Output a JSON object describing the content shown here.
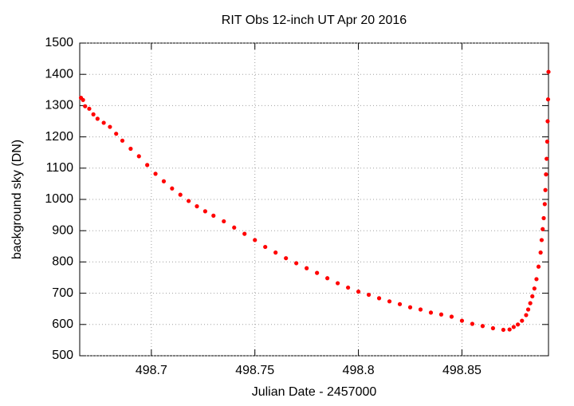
{
  "chart_data": {
    "type": "scatter",
    "title": "RIT Obs 12-inch UT Apr 20 2016",
    "x_label": "Julian Date - 2457000",
    "y_label": "background sky (DN)",
    "xlim": [
      498.6654,
      498.8918
    ],
    "ylim": [
      500,
      1500
    ],
    "xticks": [
      498.7,
      498.75,
      498.8,
      498.85
    ],
    "yticks": [
      500,
      600,
      700,
      800,
      900,
      1000,
      1100,
      1200,
      1300,
      1400,
      1500
    ],
    "grid": true,
    "series": [
      {
        "color": "#ff0000",
        "x": [
          498.666,
          498.667,
          498.668,
          498.67,
          498.672,
          498.674,
          498.677,
          498.68,
          498.683,
          498.686,
          498.69,
          498.694,
          498.698,
          498.702,
          498.706,
          498.71,
          498.714,
          498.718,
          498.722,
          498.726,
          498.73,
          498.735,
          498.74,
          498.745,
          498.75,
          498.755,
          498.76,
          498.765,
          498.77,
          498.775,
          498.78,
          498.785,
          498.79,
          498.795,
          498.8,
          498.805,
          498.81,
          498.815,
          498.82,
          498.825,
          498.83,
          498.835,
          498.84,
          498.845,
          498.85,
          498.855,
          498.86,
          498.865,
          498.87,
          498.873,
          498.875,
          498.877,
          498.879,
          498.881,
          498.882,
          498.883,
          498.884,
          498.885,
          498.886,
          498.887,
          498.888,
          498.8885,
          498.889,
          498.8895,
          498.89,
          498.8903,
          498.8906,
          498.8909,
          498.8912,
          498.8914,
          498.8916,
          498.8918
        ],
        "values": [
          1325,
          1318,
          1298,
          1290,
          1272,
          1258,
          1245,
          1232,
          1210,
          1188,
          1162,
          1138,
          1110,
          1082,
          1058,
          1035,
          1015,
          995,
          978,
          962,
          948,
          930,
          910,
          890,
          870,
          848,
          830,
          812,
          796,
          780,
          765,
          748,
          732,
          718,
          705,
          695,
          684,
          674,
          665,
          655,
          648,
          638,
          632,
          625,
          612,
          602,
          595,
          588,
          583,
          584,
          592,
          600,
          612,
          630,
          648,
          668,
          690,
          715,
          745,
          785,
          830,
          870,
          905,
          940,
          985,
          1030,
          1080,
          1130,
          1185,
          1250,
          1320,
          1408
        ]
      }
    ]
  }
}
